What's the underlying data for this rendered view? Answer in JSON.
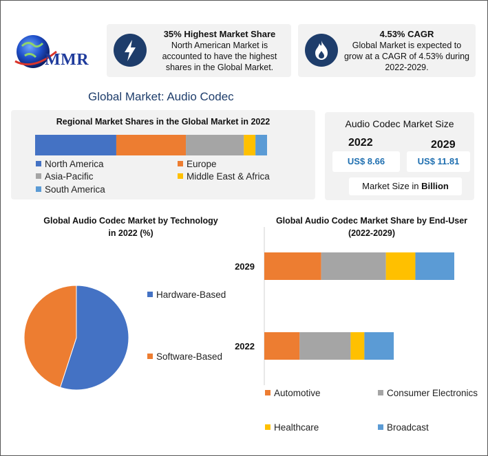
{
  "brand": {
    "name": "MMR"
  },
  "stats": [
    {
      "title": "35% Highest Market Share",
      "lines": [
        "North American Market is",
        "accounted to have the highest",
        "shares in the Global Market."
      ],
      "icon": "lightning-icon"
    },
    {
      "title": "4.53% CAGR",
      "lines": [
        "Global Market is expected to",
        "grow at a CAGR of 4.53% during",
        "2022-2029."
      ],
      "icon": "flame-icon"
    }
  ],
  "main_title": "Global Market: Audio Codec",
  "market_size": {
    "title": "Audio Codec Market Size",
    "year_a": "2022",
    "year_b": "2029",
    "value_a": "US$ 8.66",
    "value_b": "US$ 11.81",
    "unit_prefix": "Market Size in ",
    "unit_bold": "Billion"
  },
  "colors": {
    "blue": "#4472c4",
    "orange": "#ed7d31",
    "gray": "#a5a5a5",
    "yellow": "#ffc000",
    "lightblue": "#5b9bd5",
    "navy": "#1e3d6b"
  },
  "chart_data": [
    {
      "type": "bar",
      "orientation": "horizontal-stacked",
      "title": "Regional Market Shares in the Global Market in 2022",
      "series": [
        {
          "name": "North America",
          "values": [
            35
          ],
          "color": "#4472c4"
        },
        {
          "name": "Europe",
          "values": [
            30
          ],
          "color": "#ed7d31"
        },
        {
          "name": "Asia-Pacific",
          "values": [
            25
          ],
          "color": "#a5a5a5"
        },
        {
          "name": "Middle East & Africa",
          "values": [
            5
          ],
          "color": "#ffc000"
        },
        {
          "name": "South America",
          "values": [
            5
          ],
          "color": "#5b9bd5"
        }
      ],
      "legend": "bottom"
    },
    {
      "type": "pie",
      "title": "Global Audio Codec Market by Technology in 2022 (%)",
      "labels": [
        "Hardware-Based",
        "Software-Based"
      ],
      "values": [
        55,
        45
      ],
      "colors": [
        "#4472c4",
        "#ed7d31"
      ],
      "legend": "right"
    },
    {
      "type": "bar",
      "orientation": "horizontal-stacked",
      "title": "Global Audio Codec Market Share by End-User (2022-2029)",
      "categories": [
        "2029",
        "2022"
      ],
      "series": [
        {
          "name": "Automotive",
          "values": [
            2.9,
            1.8
          ],
          "color": "#ed7d31"
        },
        {
          "name": "Consumer Electronics",
          "values": [
            3.3,
            2.6
          ],
          "color": "#a5a5a5"
        },
        {
          "name": "Healthcare",
          "values": [
            1.5,
            0.7
          ],
          "color": "#ffc000"
        },
        {
          "name": "Broadcast",
          "values": [
            2.2,
            1.5
          ],
          "color": "#5b9bd5"
        }
      ],
      "legend": "bottom"
    }
  ]
}
